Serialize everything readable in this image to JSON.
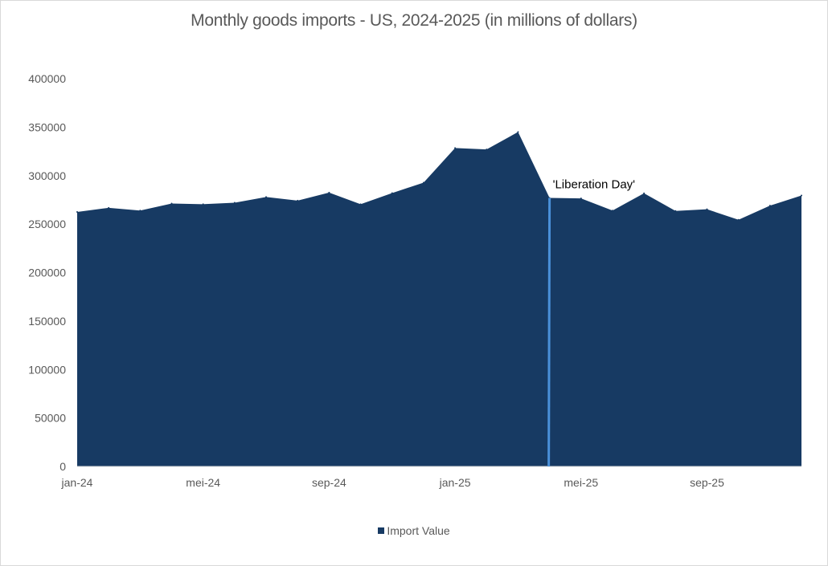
{
  "chart_data": {
    "type": "area",
    "title": "Monthly goods imports - US, 2024-2025 (in millions of dollars)",
    "x": [
      "jan-24",
      "feb-24",
      "mrt-24",
      "apr-24",
      "mei-24",
      "jun-24",
      "jul-24",
      "aug-24",
      "sep-24",
      "okt-24",
      "nov-24",
      "dec-24",
      "jan-25",
      "feb-25",
      "mrt-25",
      "apr-25",
      "mei-25",
      "jun-25",
      "jul-25",
      "aug-25",
      "sep-25",
      "okt-25",
      "nov-25",
      "dec-25"
    ],
    "x_tick_labels": [
      "jan-24",
      "mei-24",
      "sep-24",
      "jan-25",
      "mei-25",
      "sep-25"
    ],
    "series": [
      {
        "name": "Import Value",
        "color": "#173a63",
        "values": [
          262500,
          266800,
          264000,
          271200,
          270500,
          272000,
          278000,
          274200,
          282500,
          270500,
          282000,
          292800,
          328500,
          327000,
          345000,
          277000,
          276500,
          264000,
          281800,
          263600,
          265300,
          254500,
          269000,
          279500
        ]
      }
    ],
    "ylim": [
      0,
      400000
    ],
    "yticks": [
      0,
      50000,
      100000,
      150000,
      200000,
      250000,
      300000,
      350000,
      400000
    ],
    "ytick_labels": [
      "0",
      "50000",
      "100000",
      "150000",
      "200000",
      "250000",
      "300000",
      "350000",
      "400000"
    ],
    "grid": false,
    "legend": "bottom",
    "annotation": {
      "text": "'Liberation Day'",
      "at_index": 15,
      "line_color": "#4a90d9"
    }
  }
}
